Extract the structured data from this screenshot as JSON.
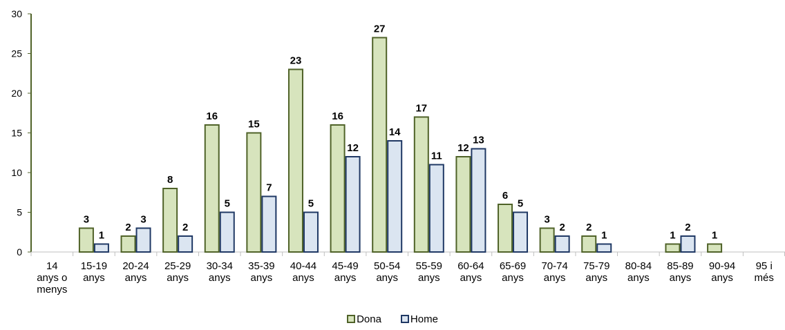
{
  "chart_data": {
    "type": "bar",
    "title": "",
    "xlabel": "",
    "ylabel": "",
    "ylim": [
      0,
      30
    ],
    "yticks": [
      0,
      5,
      10,
      15,
      20,
      25,
      30
    ],
    "grid": false,
    "legend_position": "bottom",
    "categories": [
      [
        "14",
        "anys o",
        "menys"
      ],
      [
        "15-19",
        "anys"
      ],
      [
        "20-24",
        "anys"
      ],
      [
        "25-29",
        "anys"
      ],
      [
        "30-34",
        "anys"
      ],
      [
        "35-39",
        "anys"
      ],
      [
        "40-44",
        "anys"
      ],
      [
        "45-49",
        "anys"
      ],
      [
        "50-54",
        "anys"
      ],
      [
        "55-59",
        "anys"
      ],
      [
        "60-64",
        "anys"
      ],
      [
        "65-69",
        "anys"
      ],
      [
        "70-74",
        "anys"
      ],
      [
        "75-79",
        "anys"
      ],
      [
        "80-84",
        "anys"
      ],
      [
        "85-89",
        "anys"
      ],
      [
        "90-94",
        "anys"
      ],
      [
        "95 i",
        "més"
      ]
    ],
    "series": [
      {
        "name": "Dona",
        "fill": "#d7e4bd",
        "stroke": "#4f6228",
        "values": [
          0,
          3,
          2,
          8,
          16,
          15,
          23,
          16,
          27,
          17,
          12,
          6,
          3,
          2,
          0,
          1,
          1,
          0
        ]
      },
      {
        "name": "Home",
        "fill": "#dbe5f1",
        "stroke": "#1f3864",
        "values": [
          0,
          1,
          3,
          2,
          5,
          7,
          5,
          12,
          14,
          11,
          13,
          5,
          2,
          1,
          0,
          2,
          0,
          0
        ]
      }
    ]
  }
}
